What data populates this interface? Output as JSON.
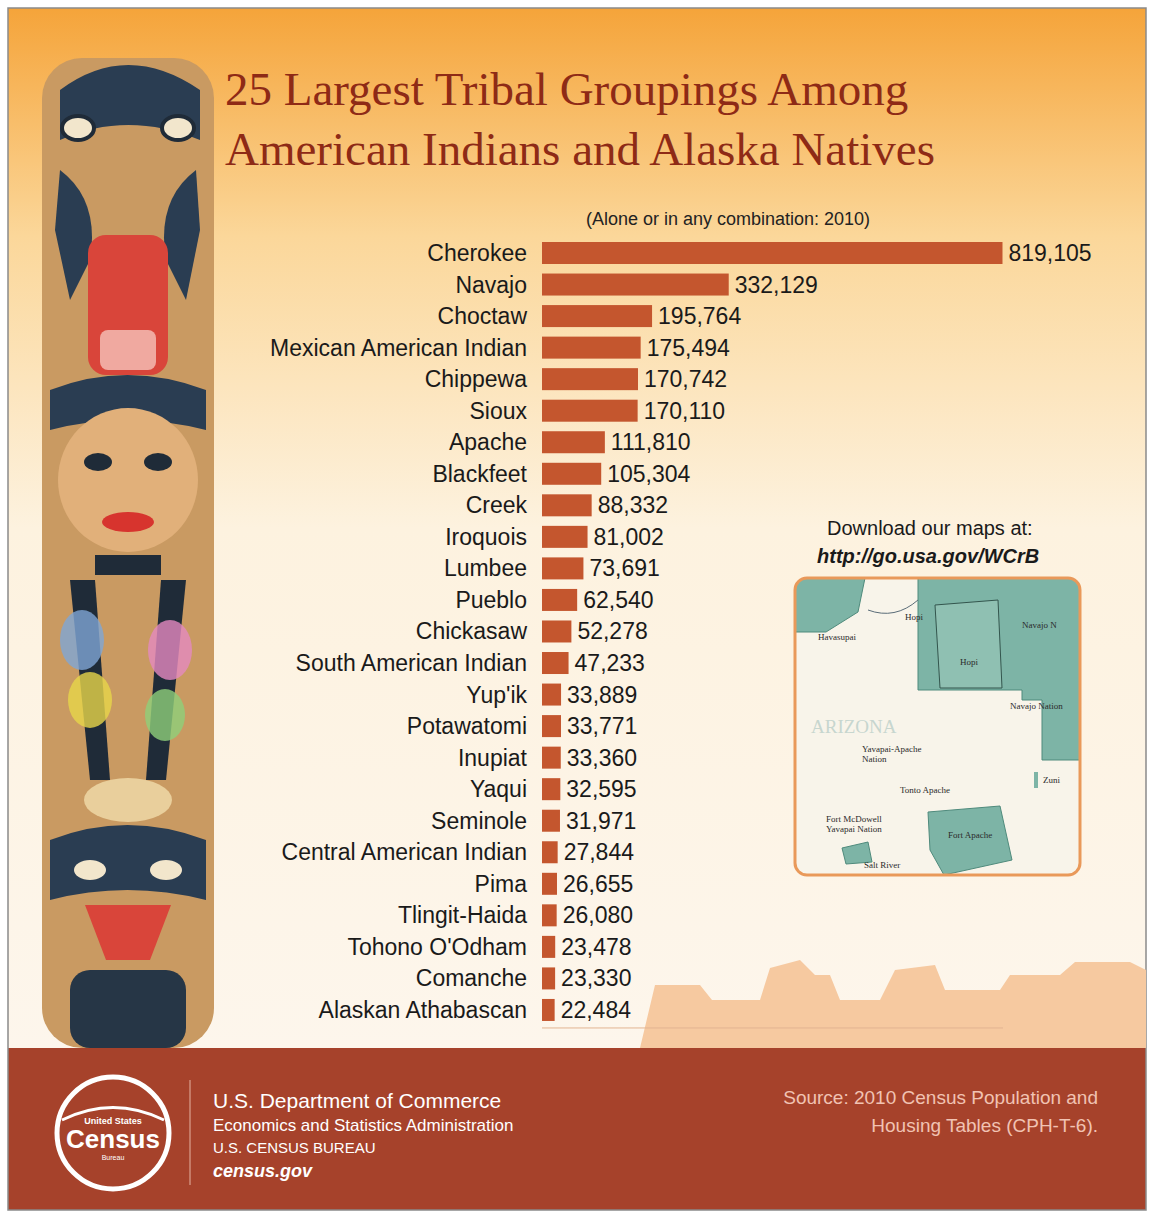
{
  "chart_data": {
    "type": "bar",
    "orientation": "horizontal",
    "title": "25 Largest Tribal Groupings Among American Indians and Alaska Natives",
    "subtitle": "(Alone or in any combination: 2010)",
    "categories": [
      "Cherokee",
      "Navajo",
      "Choctaw",
      "Mexican American Indian",
      "Chippewa",
      "Sioux",
      "Apache",
      "Blackfeet",
      "Creek",
      "Iroquois",
      "Lumbee",
      "Pueblo",
      "Chickasaw",
      "South American Indian",
      "Yup'ik",
      "Potawatomi",
      "Inupiat",
      "Yaqui",
      "Seminole",
      "Central American Indian",
      "Pima",
      "Tlingit-Haida",
      "Tohono O'Odham",
      "Comanche",
      "Alaskan Athabascan"
    ],
    "values": [
      819105,
      332129,
      195764,
      175494,
      170742,
      170110,
      111810,
      105304,
      88332,
      81002,
      73691,
      62540,
      52278,
      47233,
      33889,
      33771,
      33360,
      32595,
      31971,
      27844,
      26655,
      26080,
      23478,
      23330,
      22484
    ],
    "value_labels": [
      "819,105",
      "332,129",
      "195,764",
      "175,494",
      "170,742",
      "170,110",
      "111,810",
      "105,304",
      "88,332",
      "81,002",
      "73,691",
      "62,540",
      "52,278",
      "47,233",
      "33,889",
      "33,771",
      "33,360",
      "32,595",
      "31,971",
      "27,844",
      "26,655",
      "26,080",
      "23,478",
      "23,330",
      "22,484"
    ],
    "color": "#c4562e",
    "xlim": [
      0,
      820000
    ],
    "data_labels": true,
    "tick_labels": "y",
    "grid": false
  },
  "page": {
    "map_note": "Download our maps at:",
    "map_url": "http://go.usa.gov/WCrB",
    "map_labels": [
      "Havasupai",
      "Hopi",
      "Navajo N",
      "Hopi",
      "Navajo Nation",
      "ARIZONA",
      "Yavapai-Apache Nation",
      "Zuni",
      "Tonto Apache",
      "Fort McDowell Yavapai Nation",
      "Fort Apache",
      "Salt River"
    ],
    "footer": {
      "logo": [
        "United States",
        "Census",
        "Bureau"
      ],
      "lines": [
        "U.S. Department of Commerce",
        "Economics and Statistics Administration",
        "U.S. CENSUS BUREAU",
        "census.gov"
      ],
      "source": "Source: 2010 Census Population and Housing Tables (CPH-T-6)."
    }
  }
}
